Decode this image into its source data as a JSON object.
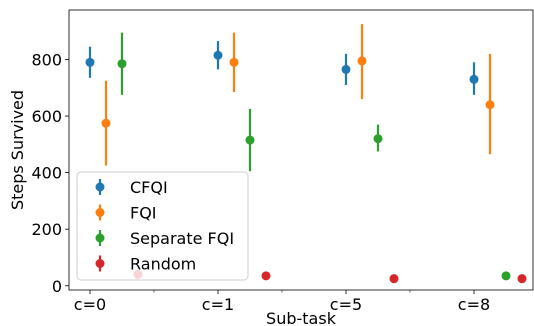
{
  "chart_data": {
    "type": "scatter",
    "title": "",
    "xlabel": "Sub-task",
    "ylabel": "Steps Survived",
    "categories": [
      "c=0",
      "c=1",
      "c=5",
      "c=8"
    ],
    "ylim": [
      -15,
      975
    ],
    "yticks": [
      0,
      200,
      400,
      600,
      800
    ],
    "grid": false,
    "legend_position": "lower-left",
    "series": [
      {
        "name": "CFQI",
        "color": "#1f77b4",
        "values": [
          790,
          815,
          765,
          730
        ],
        "err_low": [
          735,
          765,
          710,
          675
        ],
        "err_high": [
          845,
          865,
          820,
          790
        ]
      },
      {
        "name": "FQI",
        "color": "#ff7f0e",
        "values": [
          575,
          790,
          795,
          640
        ],
        "err_low": [
          425,
          685,
          660,
          465
        ],
        "err_high": [
          725,
          895,
          925,
          820
        ]
      },
      {
        "name": "Separate FQI",
        "color": "#2ca02c",
        "values": [
          785,
          515,
          520,
          35
        ],
        "err_low": [
          675,
          405,
          475,
          30
        ],
        "err_high": [
          895,
          625,
          570,
          40
        ]
      },
      {
        "name": "Random",
        "color": "#d62728",
        "values": [
          40,
          35,
          25,
          25
        ],
        "err_low": [
          35,
          30,
          20,
          20
        ],
        "err_high": [
          45,
          40,
          30,
          30
        ]
      }
    ]
  }
}
